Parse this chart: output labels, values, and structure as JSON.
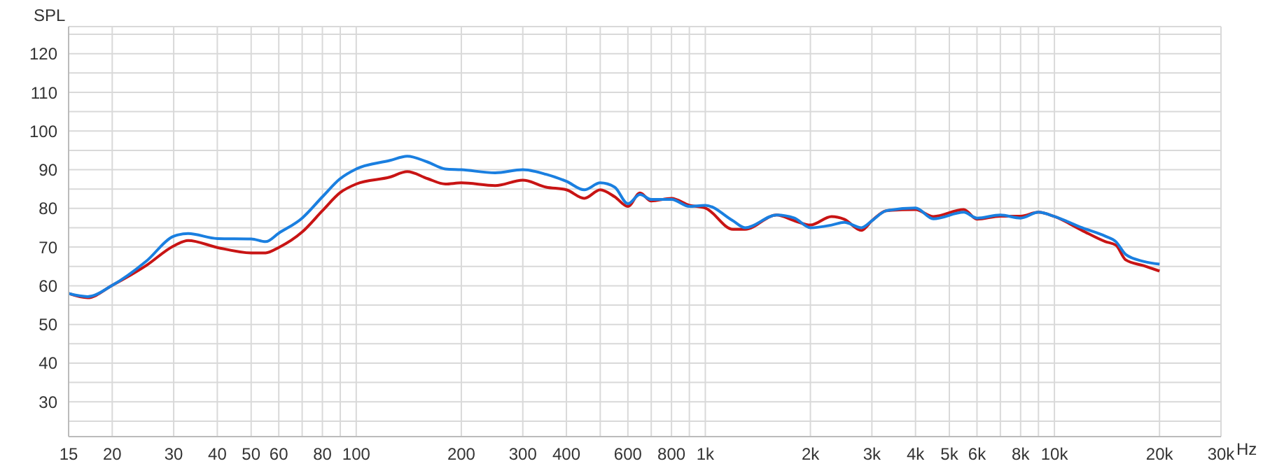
{
  "chart_data": {
    "type": "line",
    "ylabel": "SPL",
    "log": "x",
    "grid": true,
    "legend": false,
    "marker": "none",
    "line_style": "solid",
    "x": [
      15,
      17,
      20,
      25,
      30,
      33,
      40,
      50,
      55,
      60,
      70,
      80,
      90,
      100,
      125,
      140,
      160,
      180,
      200,
      250,
      300,
      350,
      400,
      450,
      500,
      550,
      600,
      650,
      700,
      800,
      900,
      1000,
      1200,
      1300,
      1600,
      1800,
      2000,
      2300,
      2500,
      2800,
      3000,
      3300,
      4000,
      4500,
      5500,
      6000,
      7000,
      8000,
      9000,
      10000,
      12000,
      14000,
      15000,
      16000,
      18000,
      20000
    ],
    "xlim": [
      15,
      30000
    ],
    "xticks": [
      15,
      20,
      30,
      40,
      50,
      60,
      {
        "value": 70,
        "label": null
      },
      80,
      {
        "value": 90,
        "label": null
      },
      100,
      200,
      300,
      400,
      {
        "value": 500,
        "label": null
      },
      600,
      {
        "value": 700,
        "label": null
      },
      800,
      {
        "value": 900,
        "label": null
      },
      {
        "value": 1000,
        "label": "1k"
      },
      {
        "value": 2000,
        "label": "2k"
      },
      {
        "value": 3000,
        "label": "3k"
      },
      {
        "value": 4000,
        "label": "4k"
      },
      {
        "value": 5000,
        "label": "5k"
      },
      {
        "value": 6000,
        "label": "6k"
      },
      {
        "value": 7000,
        "label": null
      },
      {
        "value": 8000,
        "label": "8k"
      },
      {
        "value": 9000,
        "label": null
      },
      {
        "value": 10000,
        "label": "10k"
      },
      {
        "value": 20000,
        "label": "20k"
      },
      {
        "value": 30000,
        "label": "30k"
      }
    ],
    "xlabel": "Hz",
    "ylim": [
      21,
      127
    ],
    "yticks": [
      {
        "value": 25,
        "label": null
      },
      30,
      {
        "value": 35,
        "label": null
      },
      40,
      {
        "value": 45,
        "label": null
      },
      50,
      {
        "value": 55,
        "label": null
      },
      60,
      {
        "value": 65,
        "label": null
      },
      70,
      {
        "value": 75,
        "label": null
      },
      80,
      {
        "value": 85,
        "label": null
      },
      90,
      {
        "value": 95,
        "label": null
      },
      100,
      {
        "value": 105,
        "label": null
      },
      110,
      {
        "value": 115,
        "label": null
      },
      120,
      {
        "value": 125,
        "label": null
      }
    ],
    "series": [
      {
        "color": "#c81414",
        "values": [
          58,
          56.9,
          60.1,
          65.2,
          70.3,
          71.7,
          69.9,
          68.5,
          68.5,
          69.9,
          73.9,
          79.4,
          84.1,
          86.3,
          88.1,
          89.5,
          87.7,
          86.3,
          86.6,
          85.9,
          87.3,
          85.5,
          84.8,
          82.6,
          84.8,
          83,
          80.5,
          84,
          81.9,
          82.6,
          80.8,
          80.1,
          74.6,
          74.6,
          78.3,
          76.8,
          75.7,
          77.9,
          77.2,
          74.3,
          76.8,
          79.4,
          79.7,
          77.9,
          79.7,
          77.2,
          78,
          78,
          79,
          77.9,
          74.3,
          71.4,
          70.5,
          66.7,
          65.2,
          63.8
        ]
      },
      {
        "color": "#1a7fe0",
        "values": [
          58,
          57.2,
          60.1,
          66.3,
          72.8,
          73.5,
          72.2,
          72.1,
          71.4,
          73.6,
          77.5,
          83,
          87.7,
          90.2,
          92.4,
          93.5,
          92,
          90.2,
          90,
          89.2,
          90,
          88.8,
          87,
          84.8,
          86.6,
          85.5,
          81.2,
          83.6,
          82.3,
          82.3,
          80.5,
          80.8,
          76.8,
          75,
          78.3,
          77.5,
          75,
          75.7,
          76.4,
          75,
          76.8,
          79.4,
          80.1,
          77.3,
          79,
          77.5,
          78.3,
          77.5,
          79,
          77.9,
          75,
          72.8,
          71.4,
          68.1,
          66.3,
          65.6
        ]
      }
    ]
  }
}
